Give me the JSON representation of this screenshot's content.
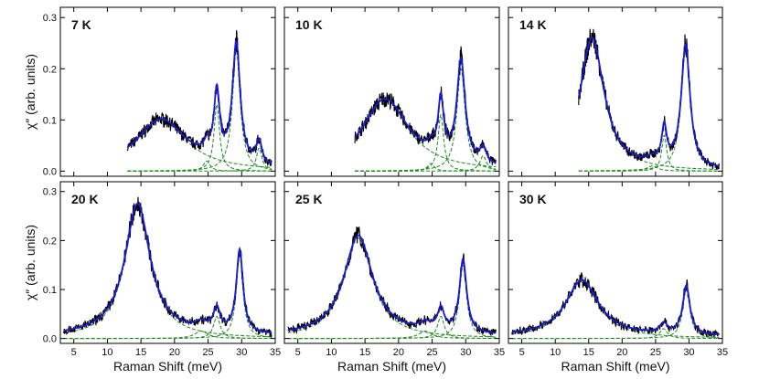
{
  "chart_data": {
    "type": "line",
    "xlabel": "Raman Shift (meV)",
    "ylabel": "χ″ (arb. units)",
    "xlim": [
      3,
      35
    ],
    "ylim": [
      -0.01,
      0.32
    ],
    "xticks": [
      5,
      10,
      15,
      20,
      25,
      30,
      35
    ],
    "xtick_labels": [
      "5",
      "10",
      "15",
      "20",
      "25",
      "30",
      "35"
    ],
    "yticks": [
      0.0,
      0.1,
      0.2,
      0.3
    ],
    "ytick_labels": [
      "0.0",
      "0.1",
      "0.2",
      "0.3"
    ],
    "series_styles": {
      "data": "#000000",
      "fit": "#1a1ad6",
      "components": "#1f8a1f"
    },
    "panels": [
      {
        "label": "7 K",
        "xmin": 13,
        "xmax": 34.5,
        "baseline": 0.0,
        "peaks": [
          {
            "center": 18.0,
            "amplitude": 0.1,
            "width": 4.6
          },
          {
            "center": 26.3,
            "amplitude": 0.13,
            "width": 0.5
          },
          {
            "center": 29.2,
            "amplitude": 0.235,
            "width": 0.7
          },
          {
            "center": 32.6,
            "amplitude": 0.045,
            "width": 0.5
          },
          {
            "center": 24.8,
            "amplitude": 0.02,
            "width": 0.6
          }
        ]
      },
      {
        "label": "10 K",
        "xmin": 13.5,
        "xmax": 34.5,
        "baseline": 0.0,
        "peaks": [
          {
            "center": 18.0,
            "amplitude": 0.14,
            "width": 4.2
          },
          {
            "center": 26.3,
            "amplitude": 0.11,
            "width": 0.5
          },
          {
            "center": 29.3,
            "amplitude": 0.2,
            "width": 0.75
          },
          {
            "center": 32.6,
            "amplitude": 0.03,
            "width": 0.6
          },
          {
            "center": 24.8,
            "amplitude": 0.015,
            "width": 0.6
          }
        ]
      },
      {
        "label": "14 K",
        "xmin": 13.5,
        "xmax": 34.5,
        "baseline": 0.0,
        "peaks": [
          {
            "center": 15.5,
            "amplitude": 0.26,
            "width": 2.2
          },
          {
            "center": 26.3,
            "amplitude": 0.07,
            "width": 0.45
          },
          {
            "center": 29.5,
            "amplitude": 0.24,
            "width": 0.8
          },
          {
            "center": 24.5,
            "amplitude": 0.01,
            "width": 1.0
          }
        ]
      },
      {
        "label": "20 K",
        "xmin": 3.5,
        "xmax": 34.5,
        "baseline": 0.005,
        "peaks": [
          {
            "center": 14.5,
            "amplitude": 0.27,
            "width": 2.3
          },
          {
            "center": 26.3,
            "amplitude": 0.045,
            "width": 0.6
          },
          {
            "center": 29.7,
            "amplitude": 0.17,
            "width": 0.6
          },
          {
            "center": 24.0,
            "amplitude": 0.015,
            "width": 1.2
          }
        ]
      },
      {
        "label": "25 K",
        "xmin": 3.5,
        "xmax": 34.5,
        "baseline": 0.005,
        "peaks": [
          {
            "center": 14.0,
            "amplitude": 0.205,
            "width": 2.6
          },
          {
            "center": 26.3,
            "amplitude": 0.045,
            "width": 0.6
          },
          {
            "center": 29.6,
            "amplitude": 0.15,
            "width": 0.65
          },
          {
            "center": 24.0,
            "amplitude": 0.015,
            "width": 1.2
          }
        ]
      },
      {
        "label": "30 K",
        "xmin": 3.5,
        "xmax": 34.5,
        "baseline": 0.004,
        "peaks": [
          {
            "center": 14.0,
            "amplitude": 0.115,
            "width": 3.0
          },
          {
            "center": 26.2,
            "amplitude": 0.02,
            "width": 0.7
          },
          {
            "center": 29.6,
            "amplitude": 0.1,
            "width": 0.65
          }
        ]
      }
    ]
  }
}
